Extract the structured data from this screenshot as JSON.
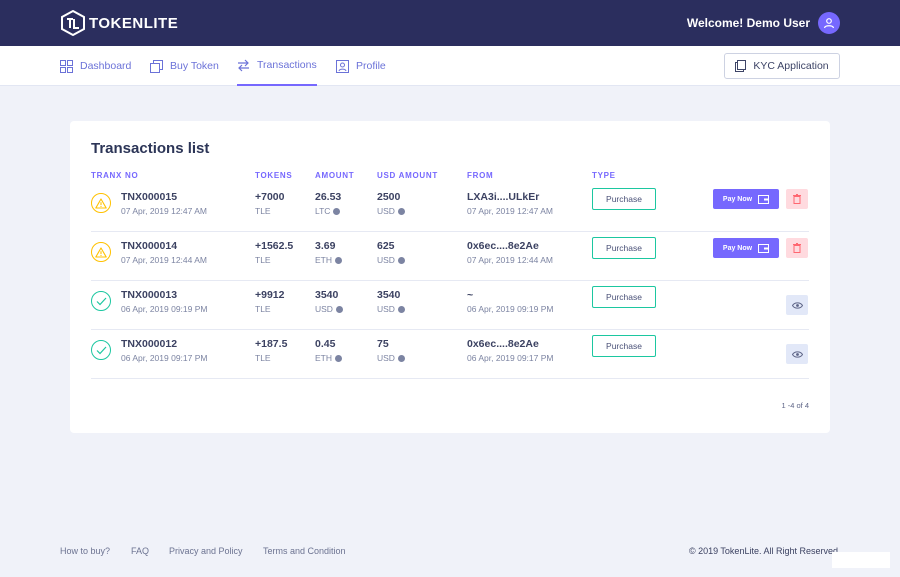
{
  "brand": {
    "name": "TOKENLITE"
  },
  "header": {
    "welcome": "Welcome! Demo User"
  },
  "nav": {
    "items": [
      {
        "label": "Dashboard",
        "icon": "dashboard-icon",
        "active": false
      },
      {
        "label": "Buy Token",
        "icon": "wallet-icon",
        "active": false
      },
      {
        "label": "Transactions",
        "icon": "transfer-arrows-icon",
        "active": true
      },
      {
        "label": "Profile",
        "icon": "user-card-icon",
        "active": false
      }
    ],
    "kyc_label": "KYC Application"
  },
  "transactions": {
    "title": "Transactions list",
    "columns": [
      "TRANX NO",
      "TOKENS",
      "AMOUNT",
      "USD AMOUNT",
      "FROM",
      "TYPE"
    ],
    "rows": [
      {
        "status": "pending",
        "id": "TNX000015",
        "date": "07 Apr, 2019 12:47 AM",
        "tokens": "+7000",
        "token_unit": "TLE",
        "amount": "26.53",
        "amount_unit": "LTC",
        "usd": "2500",
        "usd_unit": "USD",
        "from": "LXA3i....ULkEr",
        "from_date": "07 Apr, 2019 12:47 AM",
        "type": "Purchase",
        "pay_label": "Pay Now"
      },
      {
        "status": "pending",
        "id": "TNX000014",
        "date": "07 Apr, 2019 12:44 AM",
        "tokens": "+1562.5",
        "token_unit": "TLE",
        "amount": "3.69",
        "amount_unit": "ETH",
        "usd": "625",
        "usd_unit": "USD",
        "from": "0x6ec....8e2Ae",
        "from_date": "07 Apr, 2019 12:44 AM",
        "type": "Purchase",
        "pay_label": "Pay Now"
      },
      {
        "status": "success",
        "id": "TNX000013",
        "date": "06 Apr, 2019 09:19 PM",
        "tokens": "+9912",
        "token_unit": "TLE",
        "amount": "3540",
        "amount_unit": "USD",
        "usd": "3540",
        "usd_unit": "USD",
        "from": "~",
        "from_date": "06 Apr, 2019 09:19 PM",
        "type": "Purchase"
      },
      {
        "status": "success",
        "id": "TNX000012",
        "date": "06 Apr, 2019 09:17 PM",
        "tokens": "+187.5",
        "token_unit": "TLE",
        "amount": "0.45",
        "amount_unit": "ETH",
        "usd": "75",
        "usd_unit": "USD",
        "from": "0x6ec....8e2Ae",
        "from_date": "06 Apr, 2019 09:17 PM",
        "type": "Purchase"
      }
    ],
    "pagination": "1 -4 of 4"
  },
  "footer": {
    "links": [
      "How to buy?",
      "FAQ",
      "Privacy and Policy",
      "Terms and Condition"
    ],
    "copyright": "© 2019 TokenLite. All Right Reserved"
  },
  "colors": {
    "topbar": "#2b2e5e",
    "accent": "#7668fe",
    "success": "#1cc7a0",
    "warning": "#ffc100",
    "danger": "#ff6771"
  }
}
